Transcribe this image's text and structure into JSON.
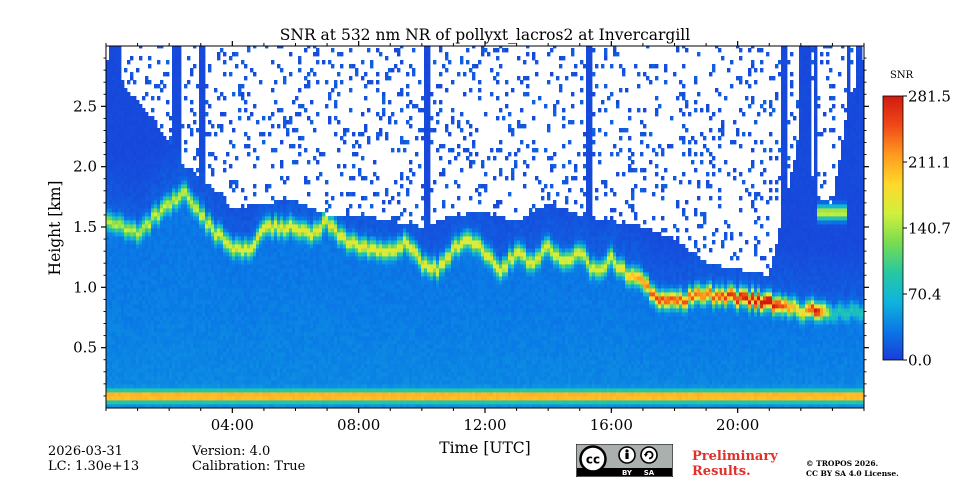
{
  "chart_data": {
    "type": "heatmap",
    "title": "SNR at 532 nm NR of pollyxt_lacros2 at Invercargill",
    "xlabel": "Time [UTC]",
    "ylabel": "Height [km]",
    "xlim_hours": [
      0,
      24
    ],
    "ylim_km": [
      0,
      3.0
    ],
    "x_ticks": [
      {
        "hour": 4,
        "label": "04:00"
      },
      {
        "hour": 8,
        "label": "08:00"
      },
      {
        "hour": 12,
        "label": "12:00"
      },
      {
        "hour": 16,
        "label": "16:00"
      },
      {
        "hour": 20,
        "label": "20:00"
      }
    ],
    "y_ticks": [
      {
        "km": 0.5,
        "label": "0.5"
      },
      {
        "km": 1.0,
        "label": "1.0"
      },
      {
        "km": 1.5,
        "label": "1.5"
      },
      {
        "km": 2.0,
        "label": "2.0"
      },
      {
        "km": 2.5,
        "label": "2.5"
      }
    ],
    "colorbar": {
      "label": "SNR",
      "range": [
        0.0,
        281.5
      ],
      "ticks": [
        "0.0",
        "70.4",
        "140.7",
        "211.1",
        "281.5"
      ],
      "colormap": [
        "#1a3cd8",
        "#0a78e6",
        "#10b4dc",
        "#28c8a0",
        "#78dc50",
        "#d2f03c",
        "#ffd82a",
        "#ff9a1e",
        "#f04818",
        "#d21a10"
      ]
    },
    "surface_layer": {
      "height_km": 0.1,
      "snr": 190
    },
    "layer_top_km": [
      [
        0.0,
        1.55
      ],
      [
        1.0,
        1.45
      ],
      [
        2.0,
        1.7
      ],
      [
        2.5,
        1.8
      ],
      [
        3.0,
        1.6
      ],
      [
        3.5,
        1.45
      ],
      [
        4.0,
        1.35
      ],
      [
        4.5,
        1.3
      ],
      [
        5.0,
        1.5
      ],
      [
        6.0,
        1.5
      ],
      [
        6.5,
        1.45
      ],
      [
        7.0,
        1.55
      ],
      [
        7.5,
        1.4
      ],
      [
        8.0,
        1.35
      ],
      [
        9.0,
        1.32
      ],
      [
        9.5,
        1.38
      ],
      [
        10.0,
        1.2
      ],
      [
        10.5,
        1.15
      ],
      [
        11.0,
        1.32
      ],
      [
        11.5,
        1.42
      ],
      [
        12.0,
        1.3
      ],
      [
        12.5,
        1.15
      ],
      [
        13.0,
        1.3
      ],
      [
        13.5,
        1.18
      ],
      [
        14.0,
        1.35
      ],
      [
        14.5,
        1.2
      ],
      [
        15.0,
        1.3
      ],
      [
        15.5,
        1.12
      ],
      [
        16.0,
        1.25
      ],
      [
        16.5,
        1.1
      ],
      [
        17.0,
        1.05
      ],
      [
        17.5,
        0.9
      ],
      [
        18.0,
        0.88
      ],
      [
        19.0,
        0.95
      ],
      [
        20.0,
        0.92
      ],
      [
        21.0,
        0.88
      ],
      [
        22.0,
        0.82
      ],
      [
        23.0,
        0.8
      ],
      [
        24.0,
        0.8
      ]
    ],
    "layer_snr": [
      [
        0.0,
        120
      ],
      [
        3.0,
        135
      ],
      [
        5.0,
        150
      ],
      [
        8.0,
        150
      ],
      [
        12.0,
        150
      ],
      [
        16.0,
        140
      ],
      [
        17.5,
        230
      ],
      [
        19.0,
        210
      ],
      [
        20.5,
        265
      ],
      [
        21.0,
        281
      ],
      [
        22.0,
        150
      ],
      [
        22.5,
        275
      ],
      [
        23.0,
        60
      ],
      [
        24.0,
        60
      ]
    ],
    "elevated_layer": {
      "hour_range": [
        22.5,
        23.5
      ],
      "height_km": 1.62,
      "snr": 150
    },
    "cloud_bands_hours": [
      [
        0.1,
        0.5
      ],
      [
        2.1,
        2.4
      ],
      [
        2.95,
        3.15
      ],
      [
        10.1,
        10.3
      ],
      [
        15.2,
        15.4
      ],
      [
        21.35,
        21.55
      ],
      [
        21.9,
        22.0
      ],
      [
        22.05,
        22.35
      ],
      [
        22.4,
        22.5
      ],
      [
        23.5,
        23.6
      ],
      [
        23.7,
        23.9
      ]
    ],
    "clear_sky_threshold_km": [
      [
        0.0,
        2.9
      ],
      [
        0.8,
        2.6
      ],
      [
        1.5,
        2.4
      ],
      [
        2.5,
        2.0
      ],
      [
        3.5,
        1.8
      ],
      [
        4.0,
        1.65
      ],
      [
        5.0,
        1.7
      ],
      [
        6.0,
        1.72
      ],
      [
        7.0,
        1.6
      ],
      [
        8.0,
        1.6
      ],
      [
        9.0,
        1.55
      ],
      [
        10.0,
        1.5
      ],
      [
        11.0,
        1.6
      ],
      [
        12.0,
        1.62
      ],
      [
        13.0,
        1.55
      ],
      [
        14.0,
        1.7
      ],
      [
        15.0,
        1.6
      ],
      [
        16.0,
        1.55
      ],
      [
        17.0,
        1.5
      ],
      [
        18.0,
        1.4
      ],
      [
        19.0,
        1.2
      ],
      [
        20.0,
        1.15
      ],
      [
        21.0,
        1.1
      ],
      [
        22.0,
        2.3
      ],
      [
        22.5,
        1.75
      ],
      [
        23.0,
        1.7
      ],
      [
        23.5,
        2.5
      ],
      [
        24.0,
        2.9
      ]
    ]
  },
  "footer": {
    "date": "2026-03-31",
    "lidar_constant": "LC: 1.30e+13",
    "version": "Version: 4.0",
    "calibration": "Calibration: True",
    "preliminary_line1": "Preliminary",
    "preliminary_line2": "Results.",
    "copyright_line1": "© TROPOS 2026.",
    "copyright_line2": "CC BY SA 4.0 License.",
    "cc_badge": {
      "cc": "cc",
      "by": "BY",
      "sa": "SA"
    }
  }
}
